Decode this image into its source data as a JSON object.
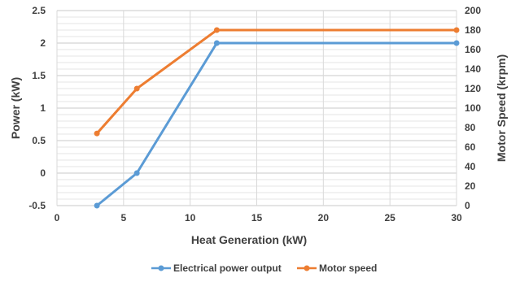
{
  "chart_data": {
    "type": "line",
    "title": "",
    "xlabel": "Heat Generation (kW)",
    "ylabel_left": "Power (kW)",
    "ylabel_right": "Motor Speed (krpm)",
    "xlim": [
      0,
      30
    ],
    "ylim_left": [
      -0.5,
      2.5
    ],
    "ylim_right": [
      0,
      200
    ],
    "x_ticks": [
      "0",
      "5",
      "10",
      "15",
      "20",
      "25",
      "30"
    ],
    "y_left_ticks": [
      "-0.5",
      "0",
      "0.5",
      "1",
      "1.5",
      "2",
      "2.5"
    ],
    "y_right_ticks": [
      "0",
      "20",
      "40",
      "60",
      "80",
      "100",
      "120",
      "140",
      "160",
      "180",
      "200"
    ],
    "grid": true,
    "legend_position": "bottom",
    "series": [
      {
        "name": "Electrical power output",
        "axis": "left",
        "color": "#5b9bd5",
        "x": [
          3,
          6,
          12,
          30
        ],
        "y": [
          -0.5,
          0,
          2,
          2
        ]
      },
      {
        "name": "Motor speed",
        "axis": "right",
        "color": "#ed7d31",
        "x": [
          3,
          6,
          12,
          30
        ],
        "y": [
          74,
          120,
          180,
          180
        ]
      }
    ]
  }
}
